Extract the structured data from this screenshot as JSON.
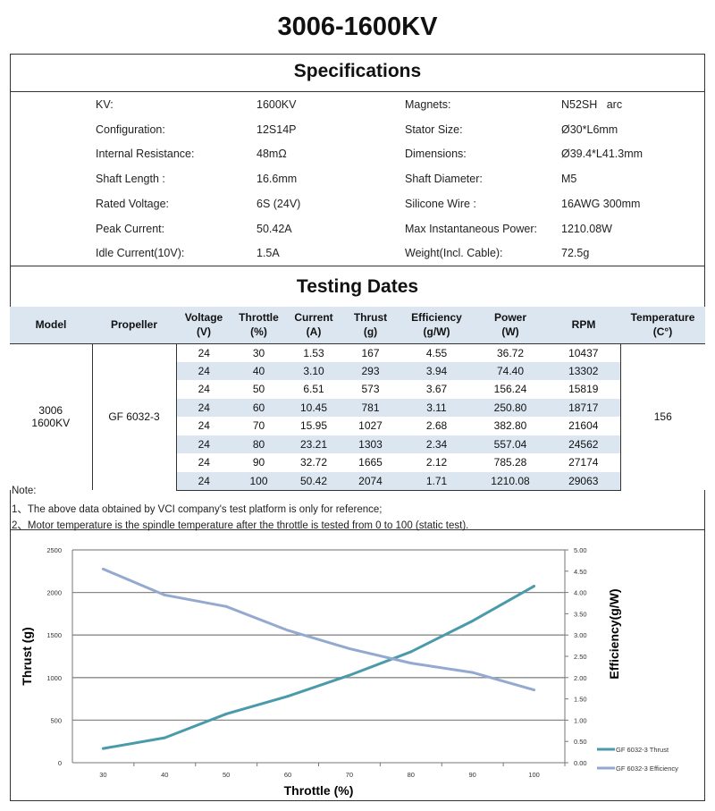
{
  "title": "3006-1600KV",
  "specifications": {
    "heading": "Specifications",
    "left": [
      {
        "label": "KV:",
        "value": "1600KV"
      },
      {
        "label": "Configuration:",
        "value": "12S14P"
      },
      {
        "label": "Internal Resistance:",
        "value": "48mΩ"
      },
      {
        "label": "Shaft Length :",
        "value": "16.6mm"
      },
      {
        "label": "Rated Voltage:",
        "value": "6S (24V)"
      },
      {
        "label": "Peak Current:",
        "value": "50.42A"
      },
      {
        "label": "Idle Current(10V):",
        "value": "1.5A"
      }
    ],
    "right": [
      {
        "label": "Magnets:",
        "value": "N52SH   arc"
      },
      {
        "label": "Stator Size:",
        "value": "Ø30*L6mm"
      },
      {
        "label": "Dimensions:",
        "value": "Ø39.4*L41.3mm"
      },
      {
        "label": "Shaft Diameter:",
        "value": "M5"
      },
      {
        "label": "Silicone Wire :",
        "value": "16AWG 300mm"
      },
      {
        "label": "Max Instantaneous Power:",
        "value": "1210.08W"
      },
      {
        "label": "Weight(Incl. Cable):",
        "value": "72.5g"
      }
    ]
  },
  "testing": {
    "heading": "Testing Dates",
    "columns": [
      [
        "Model",
        ""
      ],
      [
        "Propeller",
        ""
      ],
      [
        "Voltage",
        "(V)"
      ],
      [
        "Throttle",
        "(%)"
      ],
      [
        "Current",
        "(A)"
      ],
      [
        "Thrust",
        "(g)"
      ],
      [
        "Efficiency",
        "(g/W)"
      ],
      [
        "Power",
        "(W)"
      ],
      [
        "RPM",
        ""
      ],
      [
        "Temperature",
        "(C°)"
      ]
    ],
    "model": [
      "3006",
      "1600KV"
    ],
    "propeller": "GF 6032-3",
    "temperature": "156",
    "rows": [
      [
        "24",
        "30",
        "1.53",
        "167",
        "4.55",
        "36.72",
        "10437"
      ],
      [
        "24",
        "40",
        "3.10",
        "293",
        "3.94",
        "74.40",
        "13302"
      ],
      [
        "24",
        "50",
        "6.51",
        "573",
        "3.67",
        "156.24",
        "15819"
      ],
      [
        "24",
        "60",
        "10.45",
        "781",
        "3.11",
        "250.80",
        "18717"
      ],
      [
        "24",
        "70",
        "15.95",
        "1027",
        "2.68",
        "382.80",
        "21604"
      ],
      [
        "24",
        "80",
        "23.21",
        "1303",
        "2.34",
        "557.04",
        "24562"
      ],
      [
        "24",
        "90",
        "32.72",
        "1665",
        "2.12",
        "785.28",
        "27174"
      ],
      [
        "24",
        "100",
        "50.42",
        "2074",
        "1.71",
        "1210.08",
        "29063"
      ]
    ]
  },
  "notes": [
    "Note:",
    "1、The above data obtained by VCI company's test platform is only for reference;",
    "2、Motor temperature is the spindle temperature after the throttle is tested from 0 to 100  (static test)."
  ],
  "chart_data": {
    "type": "line",
    "xlabel": "Throttle (%)",
    "ylabel": "Thrust (g)",
    "y2label": "Efficiency(g/W)",
    "categories": [
      "30",
      "40",
      "50",
      "60",
      "70",
      "80",
      "90",
      "100"
    ],
    "ylim": [
      0,
      2500
    ],
    "yticks": [
      "0",
      "500",
      "1000",
      "1500",
      "2000",
      "2500"
    ],
    "y2lim": [
      0,
      5
    ],
    "y2ticks": [
      "0.00",
      "0.50",
      "1.00",
      "1.50",
      "2.00",
      "2.50",
      "3.00",
      "3.50",
      "4.00",
      "4.50",
      "5.00"
    ],
    "grid": true,
    "legend": "bottom-right",
    "series": [
      {
        "name": "GF 6032-3 Thrust",
        "axis": "left",
        "color": "#4a9aab",
        "values": [
          167,
          293,
          573,
          781,
          1027,
          1303,
          1665,
          2074
        ]
      },
      {
        "name": "GF 6032-3 Efficiency",
        "axis": "right",
        "color": "#94a9d0",
        "values": [
          4.55,
          3.94,
          3.67,
          3.11,
          2.68,
          2.34,
          2.12,
          1.71
        ]
      }
    ]
  }
}
